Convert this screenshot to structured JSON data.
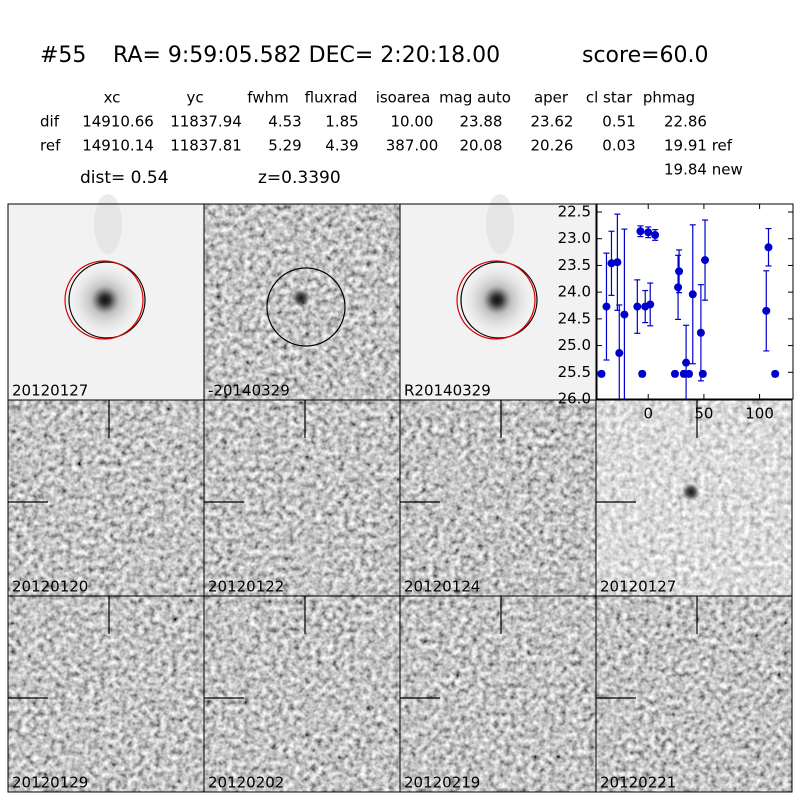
{
  "header": {
    "id": "#55",
    "coords": "RA= 9:59:05.582 DEC= 2:20:18.00",
    "score": "score=60.0"
  },
  "table": {
    "columns": [
      "xc",
      "yc",
      "fwhm",
      "fluxrad",
      "isoarea",
      "mag auto",
      "aper",
      "cl star",
      "phmag"
    ],
    "rows": [
      [
        "dif",
        "14910.66",
        "11837.94",
        "4.53",
        "1.85",
        "10.00",
        "23.88",
        "23.62",
        "0.51",
        "22.86"
      ],
      [
        "ref",
        "14910.14",
        "11837.81",
        "5.29",
        "4.39",
        "387.00",
        "20.08",
        "20.26",
        "0.03",
        "19.91 ref"
      ]
    ],
    "extra": "19.84 new"
  },
  "dist": "dist=  0.54",
  "z": "z=0.3390",
  "panels": [
    {
      "label": "20120127"
    },
    {
      "label": "-20140329"
    },
    {
      "label": "R20140329"
    },
    {
      "label": "20120120"
    },
    {
      "label": "20120122"
    },
    {
      "label": "20120124"
    },
    {
      "label": "20120127",
      "color": "#ff0000"
    },
    {
      "label": "20120129"
    },
    {
      "label": "20120202"
    },
    {
      "label": "20120219"
    },
    {
      "label": "20120221"
    }
  ],
  "chart_data": {
    "type": "scatter",
    "xlim": [
      -46,
      130
    ],
    "ylim": [
      26.0,
      22.35
    ],
    "xticks": [
      0,
      50,
      100
    ],
    "yticks": [
      22.5,
      {
        "value": 23,
        "label": "23.0"
      },
      23.5,
      {
        "value": 24,
        "label": "24.0"
      },
      24.5,
      {
        "value": 25,
        "label": "25.0"
      },
      25.5,
      {
        "value": 26,
        "label": "26.0"
      }
    ],
    "series": [
      {
        "color": "#0000cc",
        "x": [
          -42,
          -37.5,
          -33,
          -27.7,
          -26,
          -21.4,
          -9.8,
          -7,
          -5.4,
          -2.7,
          0,
          1.8,
          6.2,
          24,
          26.8,
          27.7,
          32,
          34,
          36.6,
          40,
          47.3,
          49,
          51,
          106,
          108,
          114
        ],
        "values": [
          25.53,
          24.27,
          23.46,
          23.44,
          25.14,
          24.42,
          24.27,
          22.86,
          25.53,
          24.27,
          22.88,
          24.23,
          22.93,
          25.53,
          23.91,
          23.61,
          25.53,
          25.32,
          25.53,
          24.04,
          24.76,
          25.53,
          23.4,
          24.35,
          23.16,
          25.53
        ],
        "errors": [
          0.05,
          1.0,
          0.6,
          0.9,
          0.9,
          1.6,
          0.5,
          0.1,
          0.05,
          0.3,
          0.1,
          0.4,
          0.1,
          0.05,
          0.6,
          0.4,
          0.05,
          0.7,
          0.05,
          1.3,
          0.9,
          0.05,
          0.75,
          0.75,
          0.35,
          0.05
        ]
      }
    ]
  }
}
